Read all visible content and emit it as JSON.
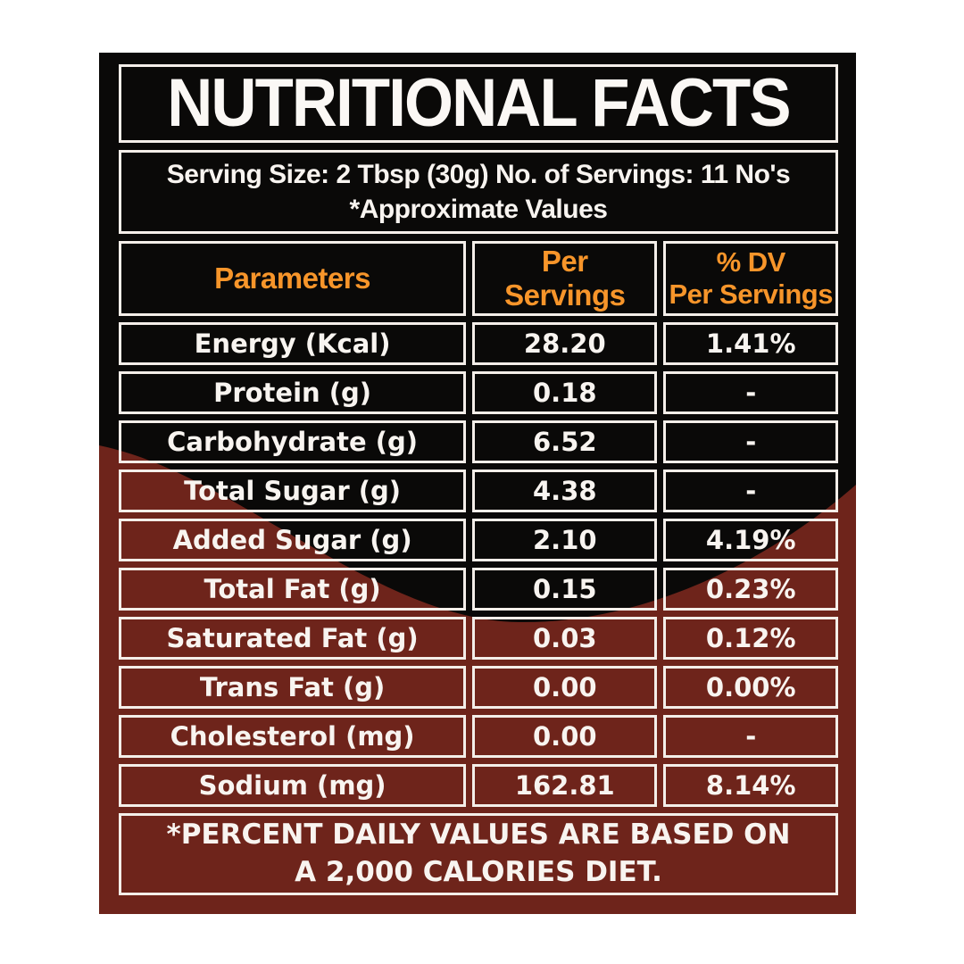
{
  "label": {
    "title": "NUTRITIONAL FACTS",
    "serving_line1": "Serving Size: 2 Tbsp (30g) No. of Servings: 11 No's",
    "serving_line2": "*Approximate Values",
    "footer_line1": "*PERCENT DAILY VALUES ARE BASED ON",
    "footer_line2": "A 2,000 CALORIES DIET.",
    "colors": {
      "page_background": "#ffffff",
      "label_black": "#0a0908",
      "wave_maroon": "#6e241b",
      "border_white": "#f4eee9",
      "header_orange": "#f7952a",
      "text_white": "#f8f4f0"
    }
  },
  "table": {
    "header": {
      "col1": "Parameters",
      "col2_line1": "Per",
      "col2_line2": "Servings",
      "col3_line1": "% DV",
      "col3_line2": "Per Servings"
    },
    "rows": [
      {
        "parameter": "Energy (Kcal)",
        "per_serving": "28.20",
        "dv": "1.41%"
      },
      {
        "parameter": "Protein (g)",
        "per_serving": "0.18",
        "dv": "-"
      },
      {
        "parameter": "Carbohydrate (g)",
        "per_serving": "6.52",
        "dv": "-"
      },
      {
        "parameter": "Total Sugar (g)",
        "per_serving": "4.38",
        "dv": "-"
      },
      {
        "parameter": "Added Sugar (g)",
        "per_serving": "2.10",
        "dv": "4.19%"
      },
      {
        "parameter": "Total Fat (g)",
        "per_serving": "0.15",
        "dv": "0.23%"
      },
      {
        "parameter": "Saturated Fat (g)",
        "per_serving": "0.03",
        "dv": "0.12%"
      },
      {
        "parameter": "Trans Fat (g)",
        "per_serving": "0.00",
        "dv": "0.00%"
      },
      {
        "parameter": "Cholesterol (mg)",
        "per_serving": "0.00",
        "dv": "-"
      },
      {
        "parameter": "Sodium (mg)",
        "per_serving": "162.81",
        "dv": "8.14%"
      }
    ]
  }
}
